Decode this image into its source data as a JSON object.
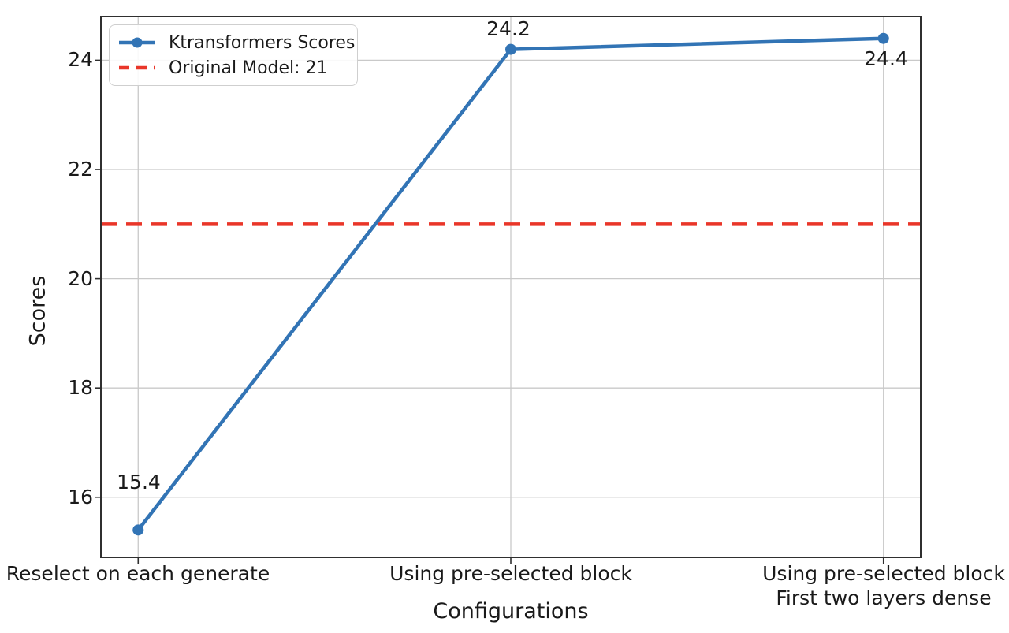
{
  "chart_data": {
    "type": "line",
    "xlabel": "Configurations",
    "ylabel": "Scores",
    "categories": [
      [
        "Reselect on each generate"
      ],
      [
        "Using pre-selected block"
      ],
      [
        "Using pre-selected block",
        "First two layers dense"
      ]
    ],
    "series": [
      {
        "name": "Ktransformers Scores",
        "values": [
          15.4,
          24.2,
          24.4
        ],
        "point_labels": [
          "15.4",
          "24.2",
          "24.4"
        ],
        "color": "#3274b5",
        "marker": "circle"
      }
    ],
    "reference_line": {
      "label": "Original Model: 21",
      "value": 21,
      "color": "#e93629",
      "style": "dashed"
    },
    "yticks": [
      16,
      18,
      20,
      22,
      24
    ],
    "ytick_labels": [
      "16",
      "18",
      "20",
      "22",
      "24"
    ],
    "ylim": [
      14.9,
      24.8
    ],
    "grid": true,
    "grid_color": "#c9c9c9",
    "spine_color": "#2f2f2f",
    "legend_position": "upper left"
  }
}
